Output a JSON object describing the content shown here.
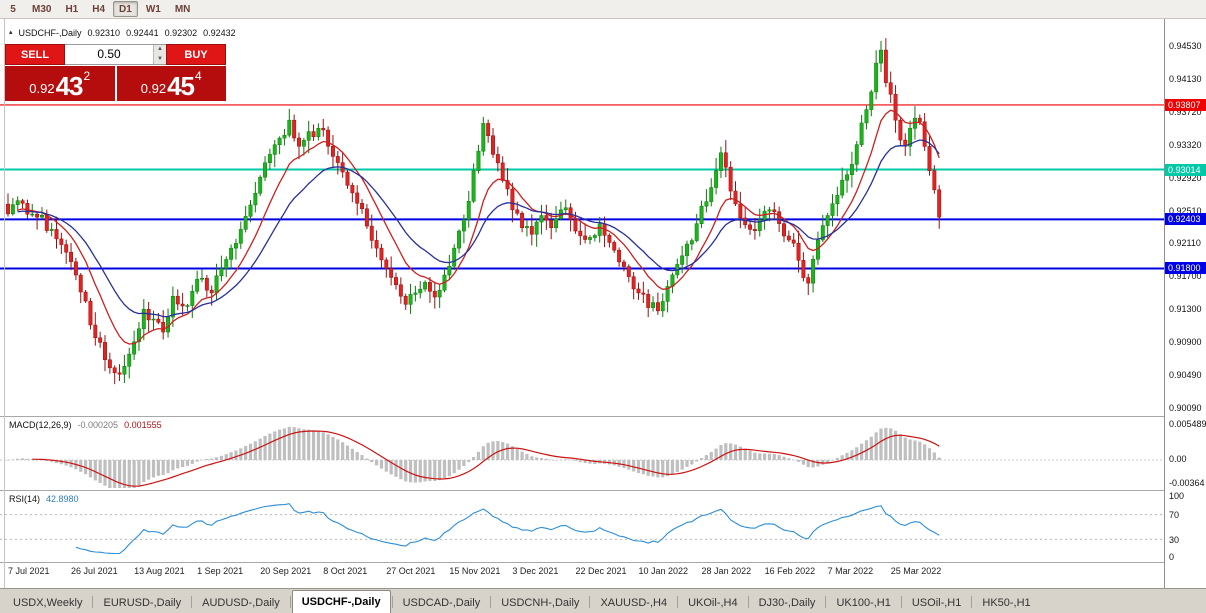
{
  "toolbar": {
    "items": [
      "5",
      "M30",
      "H1",
      "H4",
      "D1",
      "W1",
      "MN"
    ],
    "active": "D1"
  },
  "chart": {
    "header": {
      "marker": "▴",
      "symbol": "USDCHF-,Daily",
      "open": "0.92310",
      "high": "0.92441",
      "low": "0.92302",
      "close": "0.92432"
    },
    "y_axis": [
      "0.94530",
      "0.94130",
      "0.93720",
      "0.93320",
      "0.92920",
      "0.92510",
      "0.92110",
      "0.91700",
      "0.91300",
      "0.90900",
      "0.90490",
      "0.90090"
    ],
    "dates": [
      "7 Jul 2021",
      "26 Jul 2021",
      "13 Aug 2021",
      "1 Sep 2021",
      "20 Sep 2021",
      "8 Oct 2021",
      "27 Oct 2021",
      "15 Nov 2021",
      "3 Dec 2021",
      "22 Dec 2021",
      "10 Jan 2022",
      "28 Jan 2022",
      "16 Feb 2022",
      "7 Mar 2022",
      "25 Mar 2022"
    ],
    "levels": [
      {
        "price": 0.93807,
        "label": "0.93807",
        "color": "#f20000",
        "width": 1.2
      },
      {
        "price": 0.93014,
        "label": "0.93014",
        "color": "#00c9a8",
        "width": 2
      },
      {
        "price": 0.92403,
        "label": "0.92403",
        "color": "#0000e6",
        "width": 2
      },
      {
        "price": 0.918,
        "label": "0.91800",
        "color": "#0000e6",
        "width": 2
      }
    ],
    "candle_up": {
      "fill": "#1cb41c",
      "stroke": "#0c7a0c"
    },
    "candle_down": {
      "fill": "#e32222",
      "stroke": "#951010"
    },
    "ma_fast_color": "#cc2020",
    "ma_slow_color": "#28309a",
    "series_anchors": [
      [
        0,
        0.9247
      ],
      [
        3,
        0.926
      ],
      [
        6,
        0.9243
      ],
      [
        9,
        0.9228
      ],
      [
        12,
        0.92
      ],
      [
        14,
        0.9172
      ],
      [
        16,
        0.914
      ],
      [
        18,
        0.9095
      ],
      [
        20,
        0.9068
      ],
      [
        22,
        0.9052
      ],
      [
        24,
        0.906
      ],
      [
        26,
        0.909
      ],
      [
        28,
        0.913
      ],
      [
        30,
        0.9118
      ],
      [
        32,
        0.9102
      ],
      [
        34,
        0.9146
      ],
      [
        36,
        0.9134
      ],
      [
        38,
        0.9152
      ],
      [
        40,
        0.9168
      ],
      [
        42,
        0.915
      ],
      [
        44,
        0.918
      ],
      [
        46,
        0.9205
      ],
      [
        48,
        0.9228
      ],
      [
        50,
        0.9258
      ],
      [
        52,
        0.9292
      ],
      [
        54,
        0.932
      ],
      [
        56,
        0.934
      ],
      [
        58,
        0.9362
      ],
      [
        60,
        0.933
      ],
      [
        62,
        0.9348
      ],
      [
        64,
        0.9352
      ],
      [
        66,
        0.933
      ],
      [
        68,
        0.931
      ],
      [
        70,
        0.9282
      ],
      [
        72,
        0.926
      ],
      [
        74,
        0.9232
      ],
      [
        76,
        0.9205
      ],
      [
        78,
        0.918
      ],
      [
        80,
        0.916
      ],
      [
        82,
        0.9136
      ],
      [
        84,
        0.915
      ],
      [
        86,
        0.9163
      ],
      [
        88,
        0.9145
      ],
      [
        90,
        0.9172
      ],
      [
        92,
        0.9205
      ],
      [
        94,
        0.924
      ],
      [
        96,
        0.93
      ],
      [
        98,
        0.9358
      ],
      [
        100,
        0.932
      ],
      [
        102,
        0.9288
      ],
      [
        104,
        0.9252
      ],
      [
        106,
        0.923
      ],
      [
        108,
        0.9222
      ],
      [
        110,
        0.9245
      ],
      [
        112,
        0.923
      ],
      [
        114,
        0.9252
      ],
      [
        116,
        0.924
      ],
      [
        118,
        0.922
      ],
      [
        120,
        0.9218
      ],
      [
        122,
        0.9235
      ],
      [
        124,
        0.9212
      ],
      [
        126,
        0.9188
      ],
      [
        128,
        0.917
      ],
      [
        130,
        0.915
      ],
      [
        132,
        0.9132
      ],
      [
        134,
        0.9128
      ],
      [
        136,
        0.9158
      ],
      [
        138,
        0.9185
      ],
      [
        140,
        0.921
      ],
      [
        142,
        0.9235
      ],
      [
        144,
        0.9262
      ],
      [
        146,
        0.93
      ],
      [
        147,
        0.9322
      ],
      [
        149,
        0.9275
      ],
      [
        151,
        0.9242
      ],
      [
        153,
        0.9228
      ],
      [
        155,
        0.924
      ],
      [
        157,
        0.9252
      ],
      [
        159,
        0.9235
      ],
      [
        161,
        0.9215
      ],
      [
        163,
        0.919
      ],
      [
        165,
        0.9162
      ],
      [
        167,
        0.9215
      ],
      [
        169,
        0.9245
      ],
      [
        171,
        0.927
      ],
      [
        173,
        0.9295
      ],
      [
        175,
        0.9332
      ],
      [
        177,
        0.9375
      ],
      [
        179,
        0.9432
      ],
      [
        180,
        0.9448
      ],
      [
        181,
        0.9408
      ],
      [
        183,
        0.9362
      ],
      [
        185,
        0.933
      ],
      [
        186,
        0.9352
      ],
      [
        188,
        0.936
      ],
      [
        190,
        0.93
      ],
      [
        192,
        0.9243
      ]
    ]
  },
  "indicators": {
    "macd": {
      "title": "MACD(12,26,9)",
      "main_value": "-0.000205",
      "signal_value": "0.001555",
      "axis": [
        "0.005489",
        "0.00",
        "-0.00364"
      ],
      "hist_color": "#bfbfbf",
      "signal_color": "#cc1212"
    },
    "rsi": {
      "title": "RSI(14)",
      "value": "42.8980",
      "axis": [
        "100",
        "70",
        "30",
        "0"
      ],
      "line_color": "#2d8ed8",
      "bands": [
        70,
        30
      ]
    }
  },
  "trade_panel": {
    "sell_label": "SELL",
    "buy_label": "BUY",
    "volume": "0.50",
    "sell_price": {
      "prefix": "0.92",
      "big": "43",
      "sup": "2"
    },
    "buy_price": {
      "prefix": "0.92",
      "big": "45",
      "sup": "4"
    }
  },
  "tabs": {
    "active_index": 3,
    "items": [
      "USDX,Weekly",
      "EURUSD-,Daily",
      "AUDUSD-,Daily",
      "USDCHF-,Daily",
      "USDCAD-,Daily",
      "USDCNH-,Daily",
      "XAUUSD-,H4",
      "UKOil-,H4",
      "DJ30-,Daily",
      "UK100-,H1",
      "USOil-,H1",
      "HK50-,H1"
    ]
  }
}
